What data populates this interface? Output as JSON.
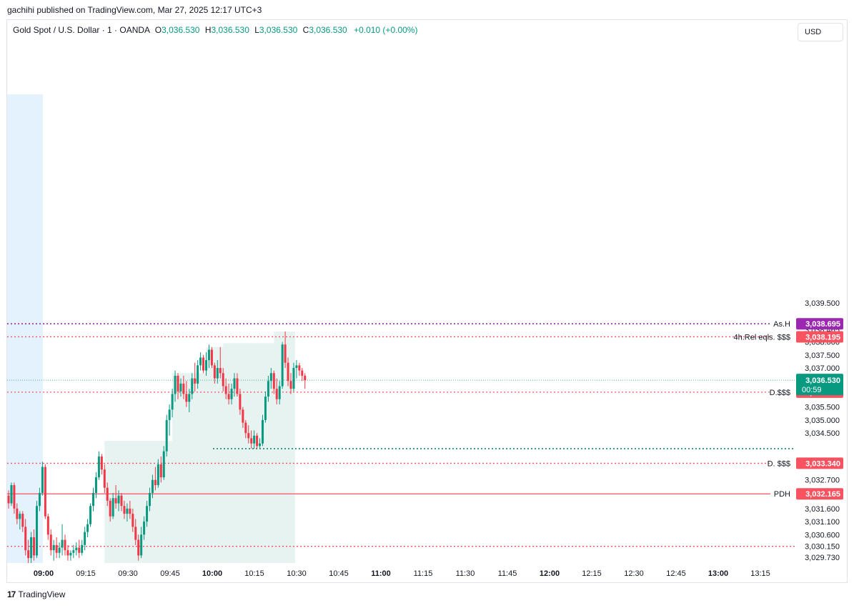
{
  "header": {
    "publisher_line": "gachihi published on TradingView.com, Mar 27, 2025 12:17 UTC+3"
  },
  "legend": {
    "symbol": "Gold Spot / U.S. Dollar · 1 · OANDA",
    "o_label": "O",
    "o_value": "3,036.530",
    "h_label": "H",
    "h_value": "3,036.530",
    "l_label": "L",
    "l_value": "3,036.530",
    "c_label": "C",
    "c_value": "3,036.530",
    "change": "+0.010 (+0.00%)"
  },
  "currency_button": "USD",
  "footer": {
    "logo": "17",
    "brand": "TradingView"
  },
  "colors": {
    "up": "#089981",
    "down": "#f23645",
    "level": "#f7525f",
    "purple": "#9c27b0",
    "teal_dotted": "#00796b",
    "zone_fill": "#e6f3f1",
    "session_fill": "#e3f2fd"
  },
  "chart_data": {
    "type": "candlestick",
    "xlabel": "",
    "ylabel": "",
    "ylim": [
      3029.5,
      3039.9
    ],
    "x_ticks": [
      "09:00",
      "09:15",
      "09:30",
      "09:45",
      "10:00",
      "10:15",
      "10:30",
      "10:45",
      "11:00",
      "11:15",
      "11:30",
      "11:45",
      "12:00",
      "12:15",
      "12:30",
      "12:45",
      "13:00",
      "13:15"
    ],
    "y_ticks": [
      "3,039.500",
      "3,038.465",
      "3,038.000",
      "3,037.500",
      "3,037.000",
      "3,035.500",
      "3,035.000",
      "3,034.500",
      "3,032.700",
      "3,031.600",
      "3,031.100",
      "3,030.600",
      "3,030.150",
      "3,029.730"
    ],
    "levels": [
      {
        "label": "As.H",
        "price": 3038.695,
        "price_text": "3,038.695",
        "axis_badge": "3,038.695",
        "style": "purple"
      },
      {
        "label": "4h.Rel eqls. $$$",
        "price": 3038.195,
        "price_text": "3,038.195",
        "axis_badge": "3,038.195",
        "style": "red-dotted"
      },
      {
        "label": "D.$$$",
        "price": 3036.07,
        "price_text": "3,036.070",
        "axis_badge": "3,036.070",
        "style": "red-dotted"
      },
      {
        "label": "",
        "price": 3033.9,
        "price_text": "3,033.900",
        "axis_badge": "",
        "style": "teal-dotted"
      },
      {
        "label": "D. $$$",
        "price": 3033.34,
        "price_text": "3,033.340",
        "axis_badge": "3,033.340",
        "style": "red-dotted"
      },
      {
        "label": "PDH",
        "price": 3032.165,
        "price_text": "3,032.165",
        "axis_badge": "3,032.165",
        "style": "red-solid"
      },
      {
        "label": "",
        "price": 3030.15,
        "price_text": "3,030.150",
        "axis_badge": "",
        "style": "red-dotted"
      }
    ],
    "last_price": {
      "price": 3036.53,
      "text": "3,036.530",
      "countdown": "00:59"
    },
    "candles": [
      [
        3032.1,
        3032.3,
        3031.6,
        3031.8
      ],
      [
        3031.8,
        3032.6,
        3031.7,
        3032.5
      ],
      [
        3032.5,
        3032.6,
        3031.4,
        3031.6
      ],
      [
        3031.6,
        3031.8,
        3031.0,
        3031.2
      ],
      [
        3031.2,
        3031.5,
        3030.8,
        3031.4
      ],
      [
        3031.4,
        3031.5,
        3030.7,
        3030.9
      ],
      [
        3030.9,
        3031.2,
        3029.8,
        3030.0
      ],
      [
        3030.0,
        3030.4,
        3029.5,
        3029.7
      ],
      [
        3029.7,
        3030.7,
        3029.5,
        3030.5
      ],
      [
        3030.5,
        3030.8,
        3029.6,
        3029.8
      ],
      [
        3029.8,
        3031.9,
        3029.7,
        3031.7
      ],
      [
        3031.7,
        3032.4,
        3031.5,
        3032.2
      ],
      [
        3032.2,
        3033.4,
        3032.1,
        3033.2
      ],
      [
        3033.2,
        3033.3,
        3031.2,
        3031.3
      ],
      [
        3031.3,
        3031.4,
        3030.4,
        3030.6
      ],
      [
        3030.6,
        3030.8,
        3029.8,
        3030.0
      ],
      [
        3030.0,
        3030.4,
        3029.6,
        3030.2
      ],
      [
        3030.2,
        3030.5,
        3029.7,
        3029.9
      ],
      [
        3029.9,
        3030.3,
        3029.7,
        3030.1
      ],
      [
        3030.1,
        3031.0,
        3029.8,
        3030.4
      ],
      [
        3030.4,
        3030.6,
        3029.8,
        3030.0
      ],
      [
        3030.0,
        3030.2,
        3029.6,
        3029.8
      ],
      [
        3029.8,
        3030.0,
        3029.6,
        3029.9
      ],
      [
        3029.9,
        3030.2,
        3029.7,
        3030.0
      ],
      [
        3030.0,
        3030.3,
        3029.8,
        3030.1
      ],
      [
        3030.1,
        3030.4,
        3029.7,
        3029.9
      ],
      [
        3029.9,
        3030.4,
        3029.8,
        3030.2
      ],
      [
        3030.2,
        3030.9,
        3030.0,
        3030.7
      ],
      [
        3030.7,
        3031.2,
        3030.5,
        3031.0
      ],
      [
        3031.0,
        3031.8,
        3030.9,
        3031.7
      ],
      [
        3031.7,
        3032.4,
        3031.5,
        3032.2
      ],
      [
        3032.2,
        3033.0,
        3032.0,
        3032.8
      ],
      [
        3032.8,
        3033.8,
        3032.7,
        3033.6
      ],
      [
        3033.6,
        3033.7,
        3032.9,
        3033.1
      ],
      [
        3033.1,
        3033.3,
        3032.2,
        3032.4
      ],
      [
        3032.4,
        3032.6,
        3031.7,
        3031.9
      ],
      [
        3031.9,
        3032.0,
        3031.1,
        3031.3
      ],
      [
        3031.3,
        3032.2,
        3031.2,
        3032.0
      ],
      [
        3032.0,
        3032.5,
        3031.6,
        3031.8
      ],
      [
        3031.8,
        3032.3,
        3031.5,
        3032.1
      ],
      [
        3032.1,
        3032.2,
        3031.5,
        3031.7
      ],
      [
        3031.7,
        3031.9,
        3031.2,
        3031.4
      ],
      [
        3031.4,
        3031.8,
        3031.1,
        3031.6
      ],
      [
        3031.6,
        3031.9,
        3031.2,
        3031.4
      ],
      [
        3031.4,
        3031.6,
        3030.7,
        3030.9
      ],
      [
        3030.9,
        3031.2,
        3030.2,
        3030.4
      ],
      [
        3030.4,
        3030.6,
        3029.6,
        3029.8
      ],
      [
        3029.8,
        3030.9,
        3029.7,
        3030.6
      ],
      [
        3030.6,
        3031.3,
        3030.4,
        3031.1
      ],
      [
        3031.1,
        3031.9,
        3030.9,
        3031.7
      ],
      [
        3031.7,
        3032.4,
        3031.5,
        3032.2
      ],
      [
        3032.2,
        3032.9,
        3032.0,
        3032.7
      ],
      [
        3032.7,
        3033.2,
        3032.3,
        3032.5
      ],
      [
        3032.5,
        3033.5,
        3032.4,
        3033.3
      ],
      [
        3033.3,
        3033.6,
        3032.6,
        3032.8
      ],
      [
        3032.8,
        3034.0,
        3032.7,
        3033.8
      ],
      [
        3033.8,
        3035.2,
        3033.6,
        3035.0
      ],
      [
        3035.0,
        3035.6,
        3034.4,
        3035.4
      ],
      [
        3035.4,
        3036.2,
        3035.1,
        3036.0
      ],
      [
        3036.0,
        3036.9,
        3035.7,
        3036.7
      ],
      [
        3036.7,
        3036.8,
        3035.8,
        3036.1
      ],
      [
        3036.1,
        3036.6,
        3035.9,
        3036.4
      ],
      [
        3036.4,
        3036.7,
        3035.8,
        3036.0
      ],
      [
        3036.0,
        3036.5,
        3035.5,
        3035.7
      ],
      [
        3035.7,
        3036.2,
        3035.3,
        3036.0
      ],
      [
        3036.0,
        3036.8,
        3035.8,
        3036.6
      ],
      [
        3036.6,
        3037.2,
        3036.1,
        3036.4
      ],
      [
        3036.4,
        3037.3,
        3036.2,
        3037.1
      ],
      [
        3037.1,
        3037.6,
        3036.9,
        3037.4
      ],
      [
        3037.4,
        3037.5,
        3036.8,
        3036.9
      ],
      [
        3036.9,
        3037.6,
        3036.7,
        3037.3
      ],
      [
        3037.3,
        3037.9,
        3037.0,
        3037.7
      ],
      [
        3037.7,
        3037.8,
        3037.0,
        3037.1
      ],
      [
        3037.1,
        3037.2,
        3036.4,
        3036.6
      ],
      [
        3036.6,
        3037.3,
        3036.4,
        3037.0
      ],
      [
        3037.0,
        3037.8,
        3036.6,
        3036.8
      ],
      [
        3036.8,
        3037.0,
        3036.1,
        3036.3
      ],
      [
        3036.3,
        3036.6,
        3035.8,
        3036.0
      ],
      [
        3036.0,
        3036.4,
        3035.6,
        3035.8
      ],
      [
        3035.8,
        3036.4,
        3035.6,
        3036.2
      ],
      [
        3036.2,
        3036.8,
        3035.9,
        3036.6
      ],
      [
        3036.6,
        3036.8,
        3035.9,
        3036.0
      ],
      [
        3036.0,
        3036.2,
        3035.2,
        3035.4
      ],
      [
        3035.4,
        3035.5,
        3034.7,
        3034.9
      ],
      [
        3034.9,
        3035.0,
        3034.3,
        3034.5
      ],
      [
        3034.5,
        3034.8,
        3034.1,
        3034.3
      ],
      [
        3034.3,
        3034.6,
        3033.9,
        3034.1
      ],
      [
        3034.1,
        3034.6,
        3033.9,
        3034.4
      ],
      [
        3034.4,
        3034.5,
        3033.9,
        3034.0
      ],
      [
        3034.0,
        3034.3,
        3033.9,
        3034.1
      ],
      [
        3034.1,
        3035.2,
        3034.0,
        3035.0
      ],
      [
        3035.0,
        3036.1,
        3034.9,
        3035.9
      ],
      [
        3035.9,
        3036.7,
        3035.7,
        3036.5
      ],
      [
        3036.5,
        3037.0,
        3036.2,
        3036.8
      ],
      [
        3036.8,
        3036.9,
        3036.0,
        3036.2
      ],
      [
        3036.2,
        3036.6,
        3035.6,
        3035.8
      ],
      [
        3035.8,
        3036.5,
        3035.6,
        3036.3
      ],
      [
        3036.3,
        3038.0,
        3036.2,
        3037.9
      ],
      [
        3037.9,
        3038.4,
        3037.0,
        3037.2
      ],
      [
        3037.2,
        3037.4,
        3036.3,
        3036.5
      ],
      [
        3036.5,
        3036.8,
        3036.0,
        3036.2
      ],
      [
        3036.2,
        3037.2,
        3036.1,
        3037.0
      ],
      [
        3037.0,
        3037.3,
        3036.6,
        3037.1
      ],
      [
        3037.1,
        3037.2,
        3036.7,
        3036.9
      ],
      [
        3036.9,
        3037.0,
        3036.5,
        3036.7
      ],
      [
        3036.7,
        3036.8,
        3036.2,
        3036.53
      ]
    ],
    "zone_steps": [
      {
        "from_index": 25,
        "to_index": 34,
        "top": 3034.2
      },
      {
        "from_index": 34,
        "to_index": 58,
        "top": 3034.2
      },
      {
        "from_index": 58,
        "to_index": 70,
        "top": 3036.8
      },
      {
        "from_index": 70,
        "to_index": 76,
        "top": 3037.8
      },
      {
        "from_index": 76,
        "to_index": 94,
        "top": 3037.95
      },
      {
        "from_index": 94,
        "to_index": 101,
        "top": 3038.4
      }
    ]
  }
}
